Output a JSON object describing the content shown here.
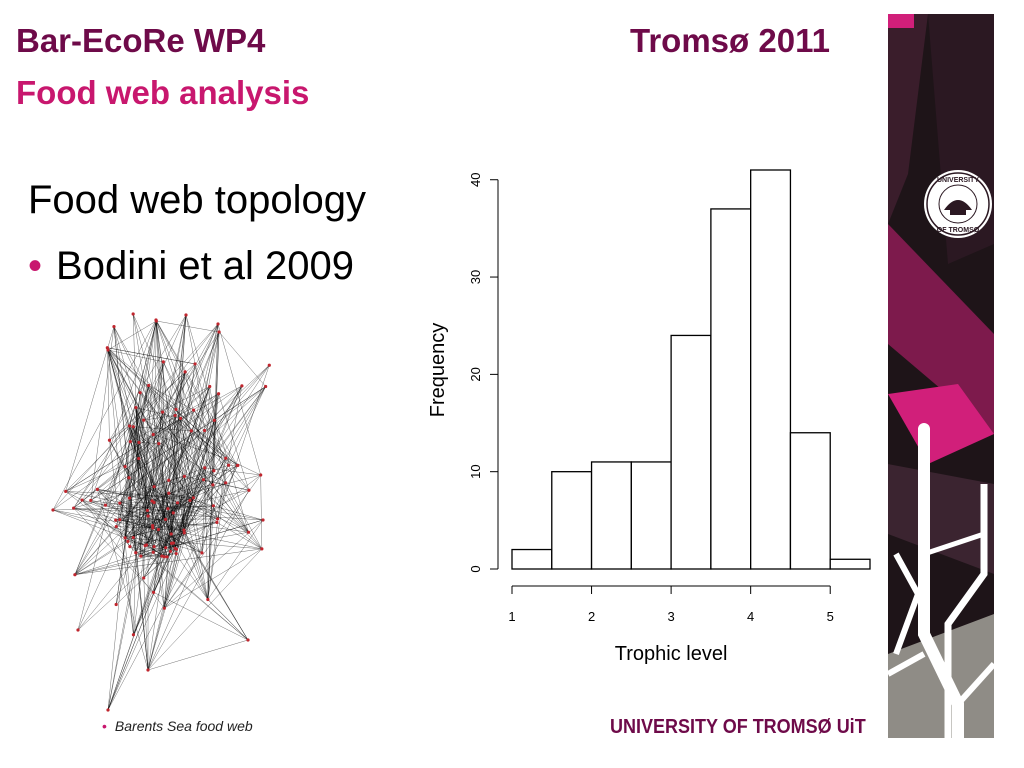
{
  "header": {
    "title": "Bar-EcoRe WP4",
    "subtitle": "Food web analysis",
    "right_title": "Tromsø 2011"
  },
  "content": {
    "heading": "Food web topology",
    "bullets": [
      "Bodini et al 2009"
    ]
  },
  "network_figure": {
    "caption": "Barents Sea food web",
    "node_color": "#c0262e"
  },
  "chart_data": {
    "type": "bar",
    "title": "",
    "xlabel": "Trophic level",
    "ylabel": "Frequency",
    "bin_edges": [
      1,
      1.5,
      2,
      2.5,
      3,
      3.5,
      4,
      4.5,
      5,
      5.5
    ],
    "values": [
      2,
      10,
      11,
      11,
      24,
      37,
      41,
      14,
      1
    ],
    "xticks": [
      1,
      2,
      3,
      4,
      5
    ],
    "yticks": [
      0,
      10,
      20,
      30,
      40
    ],
    "ylim": [
      0,
      41
    ],
    "grid": false
  },
  "branding": {
    "university_seal_text": "UNIVERSITY OF TROMSØ",
    "footer_logo": "UNIVERSITY OF TROMSØ UiT",
    "colors": {
      "dark": "#6e0a49",
      "accent": "#c8176e",
      "panel": "#1e1418"
    }
  }
}
